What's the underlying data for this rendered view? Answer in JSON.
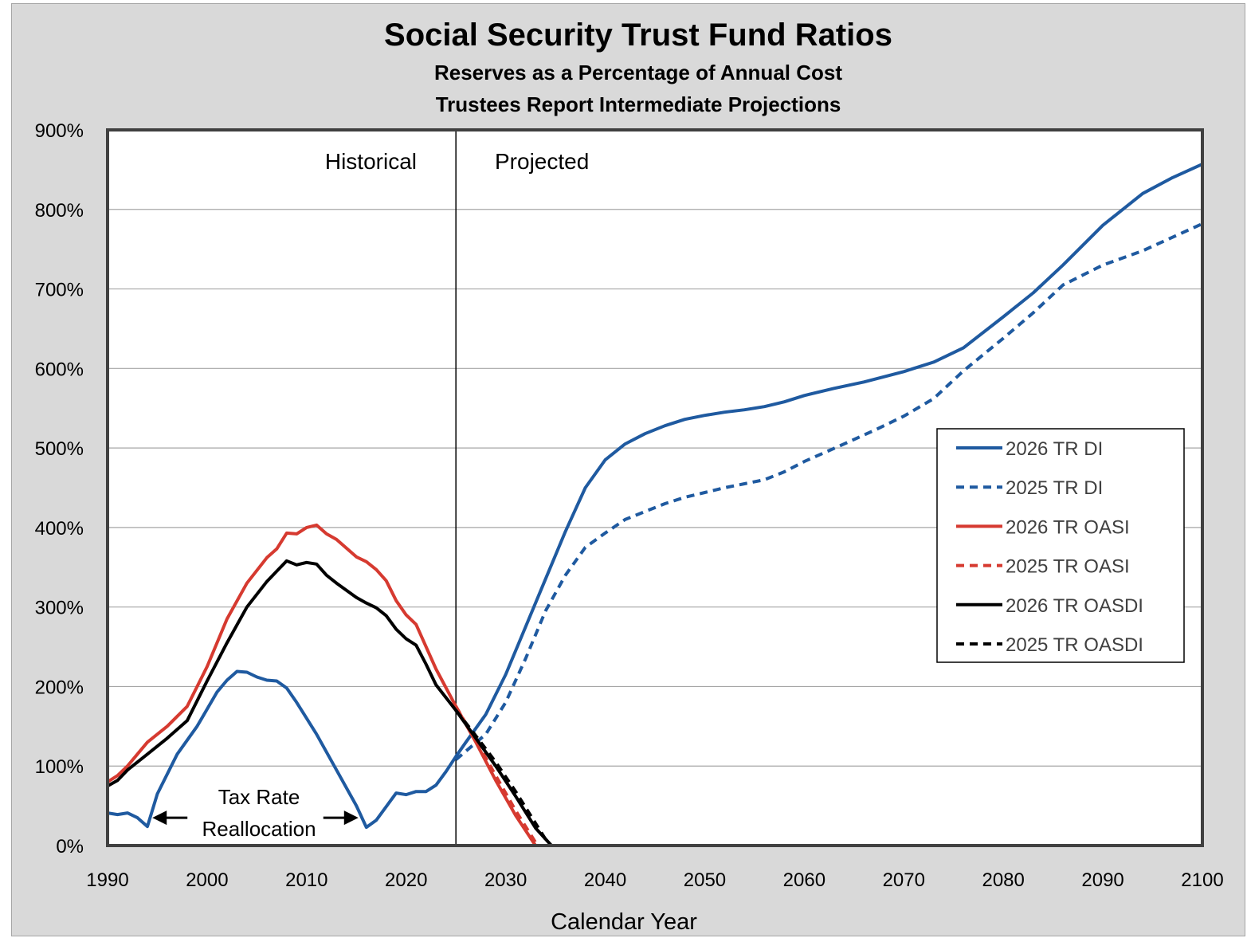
{
  "chart_data": {
    "type": "line",
    "title": "Social Security Trust Fund Ratios",
    "subtitle_lines": [
      "Reserves as a Percentage of Annual Cost",
      "Trustees Report Intermediate Projections"
    ],
    "xlabel": "Calendar Year",
    "ylabel": "",
    "xlim": [
      1990,
      2100
    ],
    "ylim": [
      0,
      900
    ],
    "x_ticks": [
      1990,
      2000,
      2010,
      2020,
      2030,
      2040,
      2050,
      2060,
      2070,
      2080,
      2090,
      2100
    ],
    "y_ticks": [
      0,
      100,
      200,
      300,
      400,
      500,
      600,
      700,
      800,
      900
    ],
    "y_tick_suffix": "%",
    "grid": "horizontal",
    "legend_position": "right",
    "divider_year": 2025,
    "region_labels": {
      "historical": "Historical",
      "projected": "Projected"
    },
    "annotation": {
      "line1": "Tax Rate",
      "line2": "Reallocation",
      "arrow_left_year": 1994.5,
      "arrow_right_year": 2015.2,
      "level": 35
    },
    "series": [
      {
        "name": "2026 TR DI",
        "color": "#1f5aa0",
        "dash": "solid",
        "x": [
          1990,
          1991,
          1992,
          1993,
          1994,
          1995,
          1997,
          1999,
          2001,
          2002,
          2003,
          2004,
          2005,
          2006,
          2007,
          2008,
          2009,
          2011,
          2013,
          2015,
          2016,
          2017,
          2019,
          2020,
          2021,
          2022,
          2023,
          2024,
          2025,
          2026,
          2028,
          2030,
          2032,
          2034,
          2036,
          2038,
          2040,
          2042,
          2044,
          2046,
          2048,
          2050,
          2052,
          2054,
          2056,
          2058,
          2060,
          2063,
          2066,
          2070,
          2073,
          2076,
          2080,
          2083,
          2086,
          2090,
          2094,
          2097,
          2100
        ],
        "y": [
          41,
          39,
          41,
          35,
          24,
          65,
          115,
          150,
          193,
          208,
          219,
          218,
          212,
          208,
          207,
          198,
          180,
          140,
          95,
          50,
          23,
          32,
          66,
          64,
          68,
          68,
          76,
          93,
          112,
          130,
          165,
          215,
          275,
          335,
          395,
          450,
          485,
          505,
          518,
          528,
          536,
          541,
          545,
          548,
          552,
          558,
          566,
          575,
          583,
          596,
          608,
          626,
          665,
          695,
          730,
          780,
          820,
          840,
          857
        ]
      },
      {
        "name": "2025 TR DI",
        "color": "#1f5aa0",
        "dash": "dotted",
        "x": [
          2025,
          2028,
          2030,
          2032,
          2034,
          2036,
          2038,
          2040,
          2042,
          2044,
          2046,
          2048,
          2050,
          2052,
          2054,
          2056,
          2058,
          2060,
          2064,
          2067,
          2070,
          2073,
          2076,
          2080,
          2083,
          2086,
          2090,
          2094,
          2097,
          2100
        ],
        "y": [
          108,
          140,
          180,
          235,
          295,
          340,
          375,
          393,
          410,
          420,
          430,
          438,
          444,
          450,
          455,
          460,
          470,
          483,
          505,
          522,
          540,
          562,
          597,
          638,
          670,
          705,
          730,
          748,
          765,
          782
        ]
      },
      {
        "name": "2026 TR OASI",
        "color": "#d63a30",
        "dash": "solid",
        "x": [
          1990,
          1991,
          1992,
          1994,
          1996,
          1998,
          2000,
          2002,
          2004,
          2006,
          2007,
          2008,
          2009,
          2010,
          2011,
          2012,
          2013,
          2015,
          2016,
          2017,
          2018,
          2019,
          2020,
          2021,
          2022,
          2023,
          2025,
          2027,
          2029,
          2031,
          2033
        ],
        "y": [
          80,
          88,
          100,
          130,
          150,
          175,
          225,
          285,
          330,
          362,
          373,
          393,
          392,
          400,
          403,
          392,
          385,
          363,
          357,
          347,
          333,
          308,
          290,
          278,
          250,
          222,
          175,
          130,
          82,
          38,
          0
        ]
      },
      {
        "name": "2025 TR OASI",
        "color": "#d63a30",
        "dash": "dotted",
        "x": [
          2025,
          2027,
          2029,
          2031,
          2033.2
        ],
        "y": [
          175,
          132,
          88,
          44,
          0
        ]
      },
      {
        "name": "2026 TR OASDI",
        "color": "#000000",
        "dash": "solid",
        "x": [
          1990,
          1991,
          1992,
          1994,
          1996,
          1998,
          2000,
          2002,
          2004,
          2006,
          2007,
          2008,
          2009,
          2010,
          2011,
          2012,
          2013,
          2015,
          2016,
          2017,
          2018,
          2019,
          2020,
          2021,
          2022,
          2023,
          2025,
          2027,
          2029,
          2031,
          2033,
          2034.6
        ],
        "y": [
          75,
          82,
          95,
          115,
          135,
          157,
          207,
          255,
          300,
          332,
          345,
          358,
          353,
          356,
          354,
          340,
          330,
          312,
          305,
          299,
          289,
          272,
          260,
          252,
          228,
          202,
          170,
          135,
          100,
          62,
          22,
          0
        ]
      },
      {
        "name": "2025 TR OASDI",
        "color": "#000000",
        "dash": "dotted",
        "x": [
          2025,
          2027,
          2029,
          2031,
          2033,
          2034.4
        ],
        "y": [
          170,
          138,
          105,
          68,
          28,
          0
        ]
      }
    ]
  }
}
